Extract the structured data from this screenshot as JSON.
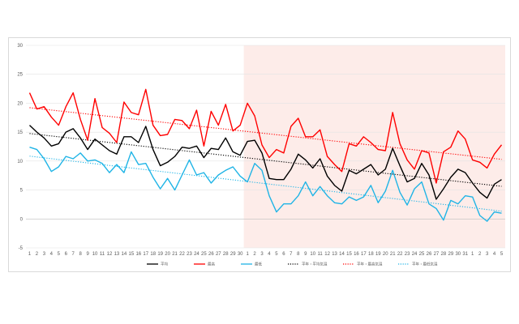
{
  "chart_data": {
    "type": "line",
    "title": "",
    "xlabel": "",
    "ylabel": "",
    "ylim": [
      -5,
      30
    ],
    "yticks": [
      -5,
      0,
      5,
      10,
      15,
      20,
      25,
      30
    ],
    "grid": true,
    "legend_position": "bottom",
    "x_labels": [
      "1",
      "2",
      "3",
      "4",
      "5",
      "6",
      "7",
      "8",
      "9",
      "10",
      "11",
      "12",
      "13",
      "14",
      "15",
      "16",
      "17",
      "18",
      "19",
      "20",
      "21",
      "22",
      "23",
      "24",
      "25",
      "26",
      "27",
      "28",
      "29",
      "30",
      "1",
      "2",
      "3",
      "4",
      "5",
      "6",
      "7",
      "8",
      "9",
      "10",
      "11",
      "12",
      "13",
      "14",
      "15",
      "16",
      "17",
      "18",
      "19",
      "20",
      "21",
      "22",
      "23",
      "24",
      "25",
      "26",
      "27",
      "28",
      "29",
      "30",
      "31",
      "1",
      "2",
      "3",
      "4",
      "5"
    ],
    "highlight": {
      "from_index": 30,
      "to_index": 65,
      "color": "#fdece9"
    },
    "series": [
      {
        "name": "平均",
        "color": "#000000",
        "style": "solid",
        "values": [
          16.2,
          15.0,
          14.0,
          12.6,
          13.0,
          15.0,
          15.6,
          14.0,
          12.0,
          13.8,
          12.8,
          11.8,
          11.2,
          14.2,
          14.2,
          13.2,
          16.0,
          12.0,
          9.2,
          9.8,
          10.8,
          12.4,
          12.2,
          12.6,
          10.6,
          12.2,
          12.0,
          14.0,
          11.6,
          11.0,
          13.4,
          13.6,
          11.4,
          7.0,
          6.8,
          6.8,
          8.6,
          11.2,
          10.2,
          8.8,
          10.4,
          7.4,
          5.8,
          4.8,
          8.4,
          7.8,
          8.6,
          9.4,
          7.6,
          8.6,
          12.2,
          9.2,
          6.4,
          7.0,
          9.6,
          7.6,
          3.4,
          5.2,
          7.2,
          8.6,
          8.0,
          6.2,
          4.6,
          3.6,
          6.0,
          6.8
        ]
      },
      {
        "name": "最高",
        "color": "#ff0000",
        "style": "solid",
        "values": [
          21.8,
          19.0,
          19.4,
          17.6,
          16.2,
          19.4,
          21.8,
          17.2,
          13.6,
          20.8,
          15.8,
          14.8,
          13.2,
          20.2,
          18.4,
          18.0,
          22.4,
          16.2,
          14.4,
          14.6,
          17.2,
          17.0,
          15.6,
          18.8,
          12.6,
          18.6,
          16.2,
          19.8,
          15.2,
          16.2,
          20.0,
          17.8,
          12.8,
          10.6,
          12.0,
          11.4,
          16.0,
          17.4,
          14.2,
          14.2,
          15.4,
          10.8,
          9.4,
          8.2,
          13.0,
          12.6,
          14.2,
          13.2,
          12.0,
          11.8,
          18.4,
          13.0,
          10.2,
          8.6,
          11.8,
          11.4,
          6.2,
          11.6,
          12.4,
          15.2,
          13.8,
          10.2,
          9.8,
          8.8,
          11.2,
          12.8
        ]
      },
      {
        "name": "最低",
        "color": "#1fb4e6",
        "style": "solid",
        "values": [
          12.4,
          12.0,
          10.4,
          8.2,
          9.0,
          10.8,
          10.4,
          11.4,
          10.0,
          10.2,
          9.6,
          8.0,
          9.4,
          8.0,
          11.6,
          9.4,
          9.6,
          7.2,
          5.2,
          7.0,
          5.0,
          7.6,
          10.2,
          7.6,
          8.0,
          6.2,
          7.6,
          8.4,
          9.0,
          7.4,
          6.4,
          9.6,
          8.4,
          4.0,
          1.2,
          2.6,
          2.6,
          4.0,
          6.4,
          4.0,
          5.6,
          4.0,
          2.8,
          2.6,
          3.8,
          3.2,
          3.8,
          5.8,
          2.8,
          4.8,
          8.4,
          4.6,
          2.4,
          5.2,
          6.4,
          2.6,
          1.8,
          -0.2,
          3.2,
          2.6,
          4.0,
          3.8,
          0.6,
          -0.4,
          1.2,
          1.0
        ]
      },
      {
        "name": "平年・平均気温",
        "color": "#000000",
        "style": "dotted",
        "trend": true
      },
      {
        "name": "平年・最高気温",
        "color": "#ff0000",
        "style": "dotted",
        "trend": true
      },
      {
        "name": "平年・最低気温",
        "color": "#1fb4e6",
        "style": "dotted",
        "trend": true
      }
    ]
  }
}
